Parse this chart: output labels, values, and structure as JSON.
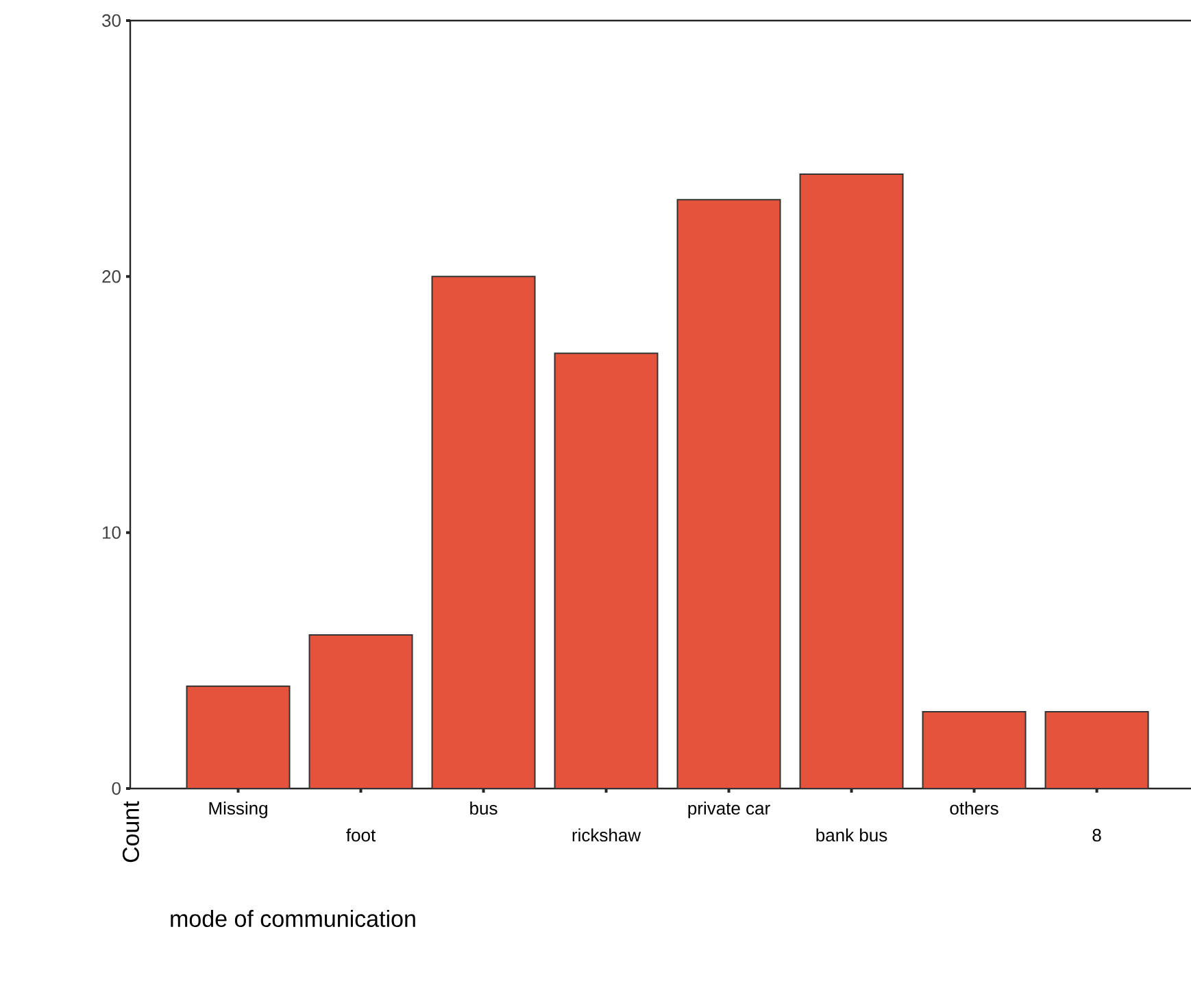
{
  "chart_data": {
    "type": "bar",
    "xlabel": "mode of communication",
    "ylabel": "Count",
    "categories": [
      "Missing",
      "foot",
      "bus",
      "rickshaw",
      "private car",
      "bank bus",
      "others",
      "8"
    ],
    "values": [
      4,
      6,
      20,
      17,
      23,
      24,
      3,
      3
    ],
    "color": "#e5533d",
    "ylim": [
      0,
      30
    ],
    "yticks": [
      0,
      10,
      20,
      30
    ]
  }
}
